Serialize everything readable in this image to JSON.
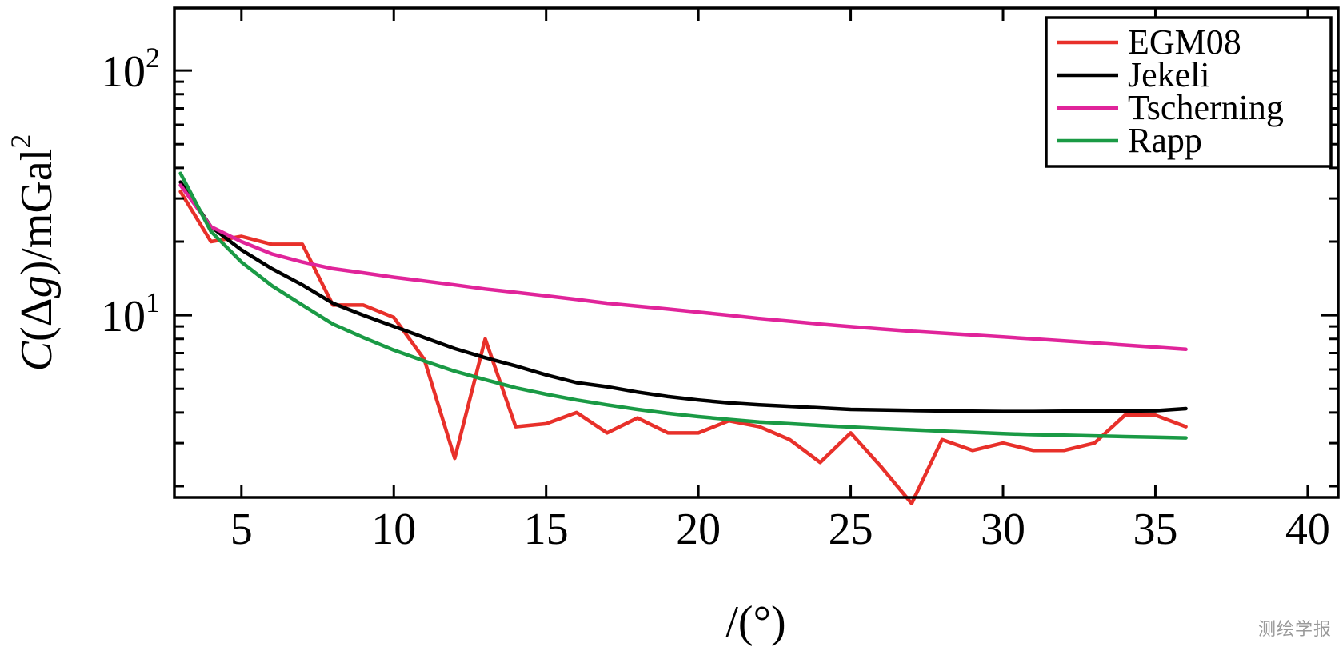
{
  "chart_data": {
    "type": "line",
    "title": "",
    "xlabel": "/(°)",
    "ylabel_parts": {
      "var": "C",
      "open": "(",
      "delta": "Δ",
      "g": "g",
      "close": ")/mGal",
      "exp": "2"
    },
    "xlim": [
      2.8,
      41.0
    ],
    "ylim": [
      1.8,
      180
    ],
    "yscale": "log",
    "x_ticks": [
      5,
      10,
      15,
      20,
      25,
      30,
      35,
      40
    ],
    "x_tick_labels": [
      "5",
      "10",
      "15",
      "20",
      "25",
      "30",
      "35",
      "40"
    ],
    "y_major_ticks": [
      {
        "value": 10,
        "base": "10",
        "exp": "1"
      },
      {
        "value": 100,
        "base": "10",
        "exp": "2"
      }
    ],
    "grid": false,
    "legend_position": "top-right",
    "series": [
      {
        "name": "EGM08",
        "color": "#e8302a",
        "x": [
          3,
          4,
          5,
          6,
          7,
          8,
          9,
          10,
          11,
          12,
          13,
          14,
          15,
          16,
          17,
          18,
          19,
          20,
          21,
          22,
          23,
          24,
          25,
          26,
          27,
          28,
          29,
          30,
          31,
          32,
          33,
          34,
          35,
          36
        ],
        "y": [
          32,
          20,
          21,
          19.5,
          19.5,
          11,
          11,
          9.8,
          6.6,
          2.6,
          8,
          3.5,
          3.6,
          4.0,
          3.3,
          3.8,
          3.3,
          3.3,
          3.7,
          3.5,
          3.1,
          2.5,
          3.3,
          2.4,
          1.7,
          3.1,
          2.8,
          3.0,
          2.8,
          2.8,
          3.0,
          3.9,
          3.9,
          3.5
        ]
      },
      {
        "name": "Jekeli",
        "color": "#000000",
        "x": [
          3,
          4,
          5,
          6,
          7,
          8,
          9,
          10,
          11,
          12,
          13,
          14,
          15,
          16,
          17,
          18,
          19,
          20,
          21,
          22,
          23,
          24,
          25,
          26,
          27,
          28,
          29,
          30,
          31,
          32,
          33,
          34,
          35,
          36
        ],
        "y": [
          35,
          23,
          18.5,
          15.5,
          13.3,
          11.2,
          10,
          9,
          8.1,
          7.3,
          6.7,
          6.2,
          5.7,
          5.3,
          5.1,
          4.85,
          4.65,
          4.5,
          4.38,
          4.3,
          4.24,
          4.18,
          4.12,
          4.1,
          4.08,
          4.06,
          4.05,
          4.04,
          4.04,
          4.05,
          4.06,
          4.06,
          4.07,
          4.15
        ]
      },
      {
        "name": "Tscherning",
        "color": "#e0249a",
        "x": [
          3,
          4,
          5,
          6,
          7,
          8,
          9,
          10,
          11,
          12,
          13,
          14,
          15,
          16,
          17,
          18,
          19,
          20,
          21,
          22,
          23,
          24,
          25,
          26,
          27,
          28,
          29,
          30,
          31,
          32,
          33,
          34,
          35,
          36
        ],
        "y": [
          34,
          23,
          20,
          17.8,
          16.5,
          15.5,
          14.9,
          14.3,
          13.8,
          13.3,
          12.8,
          12.4,
          12.0,
          11.6,
          11.2,
          10.9,
          10.6,
          10.3,
          10.0,
          9.7,
          9.45,
          9.2,
          8.98,
          8.78,
          8.6,
          8.45,
          8.3,
          8.15,
          8.0,
          7.85,
          7.7,
          7.55,
          7.4,
          7.25
        ]
      },
      {
        "name": "Rapp",
        "color": "#1a9a45",
        "x": [
          3,
          4,
          5,
          6,
          7,
          8,
          9,
          10,
          11,
          12,
          13,
          14,
          15,
          16,
          17,
          18,
          19,
          20,
          21,
          22,
          23,
          24,
          25,
          26,
          27,
          28,
          29,
          30,
          31,
          32,
          33,
          34,
          35,
          36
        ],
        "y": [
          38,
          22,
          16.5,
          13.2,
          11,
          9.2,
          8.1,
          7.2,
          6.5,
          5.9,
          5.45,
          5.05,
          4.75,
          4.5,
          4.3,
          4.12,
          3.97,
          3.85,
          3.75,
          3.66,
          3.6,
          3.54,
          3.49,
          3.44,
          3.4,
          3.36,
          3.32,
          3.28,
          3.25,
          3.23,
          3.21,
          3.19,
          3.17,
          3.15
        ]
      }
    ]
  },
  "watermark": "测绘学报"
}
